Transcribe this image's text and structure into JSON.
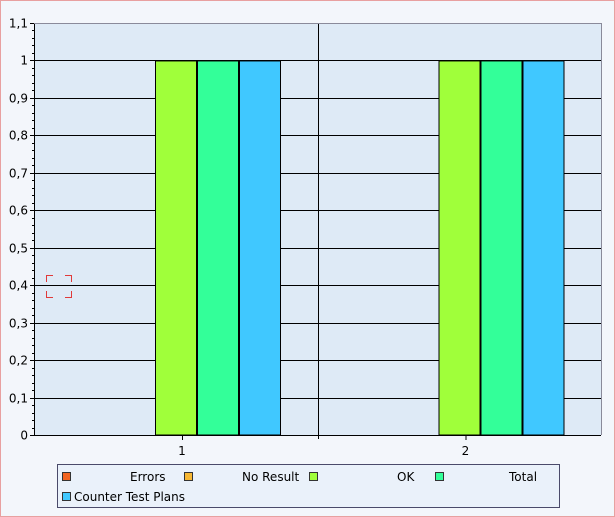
{
  "chart_data": {
    "type": "bar",
    "categories": [
      "1",
      "2"
    ],
    "series": [
      {
        "name": "Errors",
        "color": "#f26522",
        "values": [
          0,
          0
        ]
      },
      {
        "name": "No Result",
        "color": "#f7b733",
        "values": [
          0,
          0
        ]
      },
      {
        "name": "OK",
        "color": "#a0ff3a",
        "values": [
          1,
          1
        ]
      },
      {
        "name": "Total",
        "color": "#33ff99",
        "values": [
          1,
          1
        ]
      },
      {
        "name": "Counter Test Plans",
        "color": "#40c8ff",
        "values": [
          1,
          1
        ]
      }
    ],
    "yticks": [
      "0",
      "0,1",
      "0,2",
      "0,3",
      "0,4",
      "0,5",
      "0,6",
      "0,7",
      "0,8",
      "0,9",
      "1",
      "1,1"
    ],
    "ylim": [
      0,
      1.1
    ],
    "grid": true,
    "legend_position": "bottom",
    "colors": {
      "plot_background": "#deeaf6",
      "gridline": "#000000",
      "bar_outline": "#000000"
    }
  }
}
